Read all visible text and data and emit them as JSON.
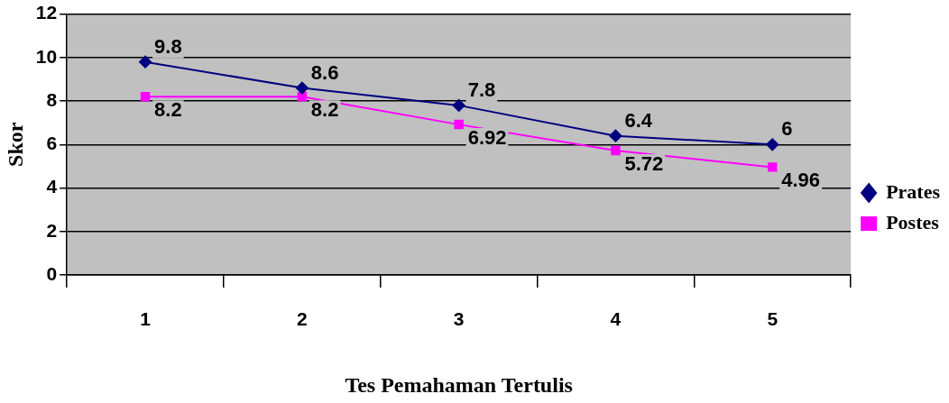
{
  "chart_data": {
    "type": "line",
    "xlabel": "Tes Pemahaman Tertulis",
    "ylabel": "Skor",
    "categories": [
      "1",
      "2",
      "3",
      "4",
      "5"
    ],
    "series": [
      {
        "name": "Prates",
        "color": "#000080",
        "values": [
          9.8,
          8.6,
          7.8,
          6.4,
          6
        ],
        "marker": "diamond"
      },
      {
        "name": "Postes",
        "color": "#ff00ff",
        "values": [
          8.2,
          8.2,
          6.92,
          5.72,
          4.96
        ],
        "marker": "square"
      }
    ],
    "ylim": [
      0,
      12
    ],
    "yticks": [
      0,
      2,
      4,
      6,
      8,
      10,
      12
    ],
    "grid": "y",
    "legend": "right",
    "data_labels": true,
    "line_style": "solid"
  }
}
